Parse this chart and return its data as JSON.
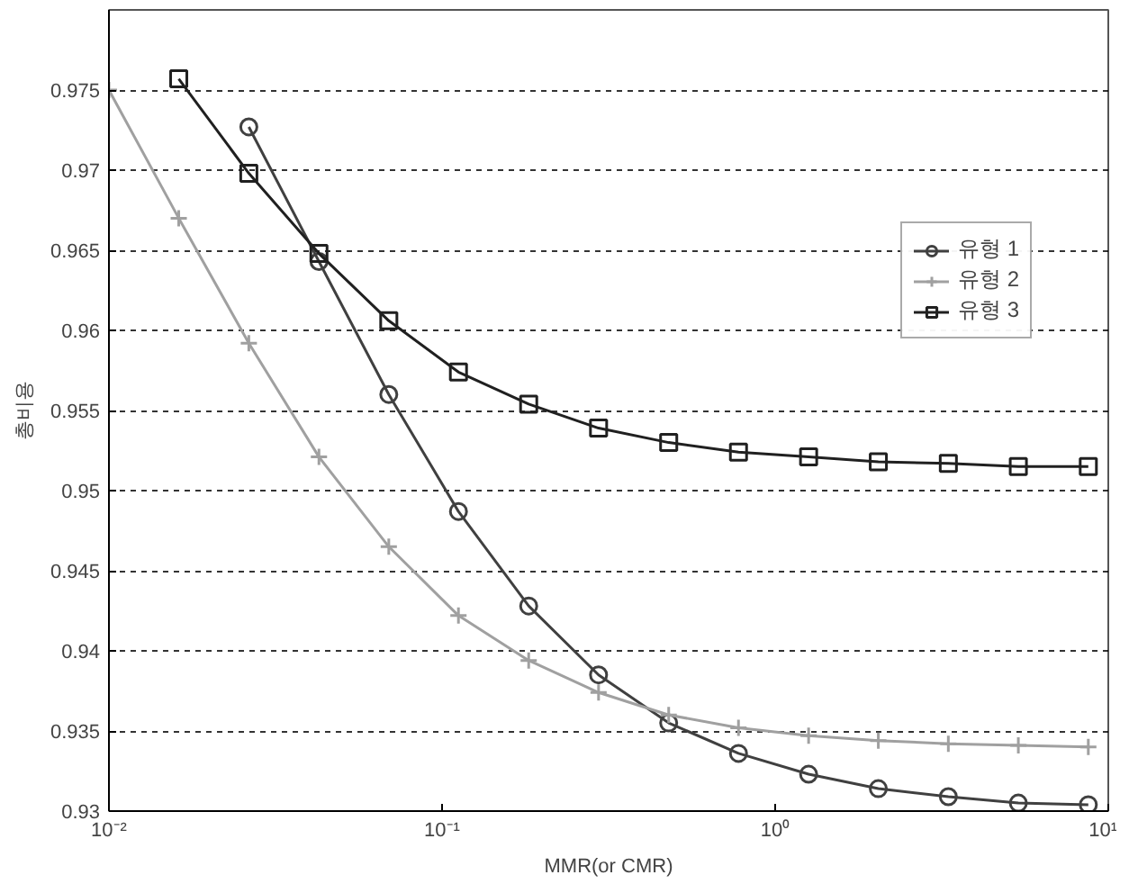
{
  "chart_data": {
    "type": "line",
    "xlabel": "MMR(or CMR)",
    "ylabel": "총비용",
    "log": "x",
    "grid": "y",
    "legend": "right",
    "line_style": "solid",
    "xlim": [
      0.01,
      10
    ],
    "xticks": [
      {
        "value": 0.01,
        "label": "10⁻²"
      },
      {
        "value": 0.1,
        "label": "10⁻¹"
      },
      {
        "value": 1,
        "label": "10⁰"
      },
      {
        "value": 10,
        "label": "10¹"
      }
    ],
    "ylim": [
      0.93,
      0.98
    ],
    "yticks": [
      0.93,
      0.935,
      0.94,
      0.945,
      0.95,
      0.955,
      0.96,
      0.965,
      0.97,
      0.975
    ],
    "series": [
      {
        "name": "유형 1",
        "color": "#404040",
        "marker": "circle",
        "x": [
          0.0263,
          0.0427,
          0.0692,
          0.112,
          0.182,
          0.295,
          0.479,
          0.776,
          1.26,
          2.04,
          3.31,
          5.37,
          8.71
        ],
        "values": [
          0.9727,
          0.9643,
          0.956,
          0.9487,
          0.9428,
          0.9385,
          0.9355,
          0.9336,
          0.9323,
          0.9314,
          0.9309,
          0.9305,
          0.9304
        ]
      },
      {
        "name": "유형 2",
        "color": "#a0a0a0",
        "marker": "cross",
        "x": [
          0.01,
          0.0162,
          0.0263,
          0.0427,
          0.0692,
          0.112,
          0.182,
          0.295,
          0.479,
          0.776,
          1.26,
          2.04,
          3.31,
          5.37,
          8.71
        ],
        "values": [
          0.975,
          0.967,
          0.9592,
          0.9521,
          0.9465,
          0.9422,
          0.9394,
          0.9374,
          0.936,
          0.9352,
          0.9347,
          0.9344,
          0.9342,
          0.9341,
          0.934
        ]
      },
      {
        "name": "유형 3",
        "color": "#202020",
        "marker": "square",
        "x": [
          0.0162,
          0.0263,
          0.0427,
          0.0692,
          0.112,
          0.182,
          0.295,
          0.479,
          0.776,
          1.26,
          2.04,
          3.31,
          5.37,
          8.71
        ],
        "values": [
          0.9757,
          0.9698,
          0.9648,
          0.9606,
          0.9574,
          0.9554,
          0.9539,
          0.953,
          0.9524,
          0.9521,
          0.9518,
          0.9517,
          0.9515,
          0.9515
        ]
      }
    ]
  }
}
